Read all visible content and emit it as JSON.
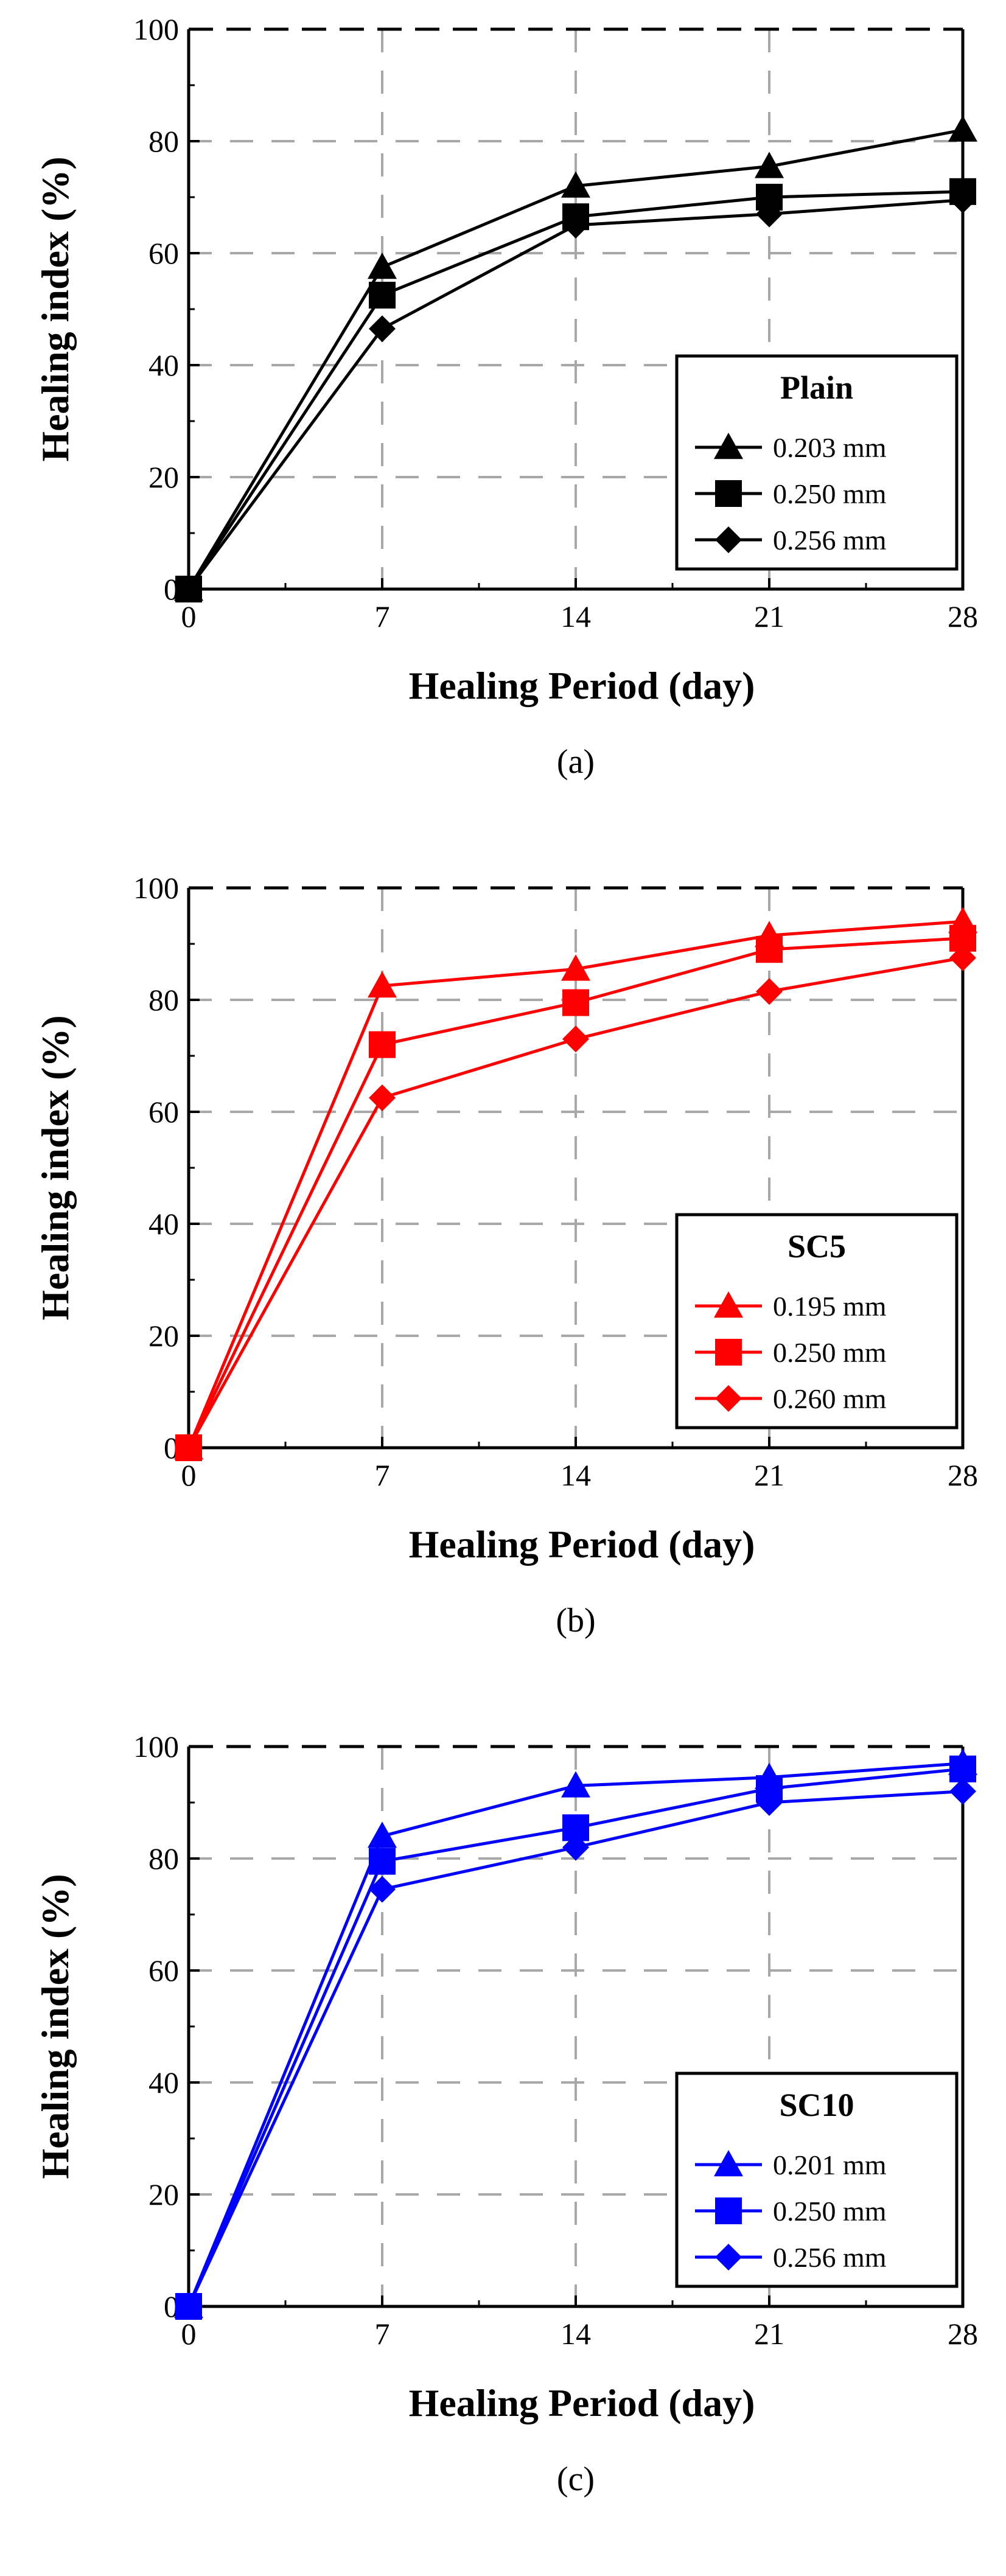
{
  "chart_data": [
    {
      "type": "line",
      "panel_caption": "(a)",
      "xlabel": "Healing Period (day)",
      "ylabel": "Healing index (%)",
      "x": [
        0,
        7,
        14,
        21,
        28
      ],
      "x_ticks": [
        "0",
        "7",
        "14",
        "21",
        "28"
      ],
      "y_ticks": [
        "0",
        "20",
        "40",
        "60",
        "80",
        "100"
      ],
      "xlim": [
        0,
        28
      ],
      "ylim": [
        0,
        100
      ],
      "grid": "dashed",
      "color": "#000000",
      "legend_position": "bottom-right",
      "legend_title": "Plain",
      "series": [
        {
          "name": "0.203 mm",
          "marker": "triangle",
          "values": [
            0,
            57.5,
            72,
            75.5,
            82
          ]
        },
        {
          "name": "0.250 mm",
          "marker": "square",
          "values": [
            0,
            52.5,
            66.5,
            70,
            71
          ]
        },
        {
          "name": "0.256 mm",
          "marker": "diamond",
          "values": [
            0,
            46.5,
            65,
            67,
            69.5
          ]
        }
      ]
    },
    {
      "type": "line",
      "panel_caption": "(b)",
      "xlabel": "Healing Period (day)",
      "ylabel": "Healing index (%)",
      "x": [
        0,
        7,
        14,
        21,
        28
      ],
      "x_ticks": [
        "0",
        "7",
        "14",
        "21",
        "28"
      ],
      "y_ticks": [
        "0",
        "20",
        "40",
        "60",
        "80",
        "100"
      ],
      "xlim": [
        0,
        28
      ],
      "ylim": [
        0,
        100
      ],
      "grid": "dashed",
      "color": "#ff0000",
      "legend_position": "bottom-right",
      "legend_title": "SC5",
      "series": [
        {
          "name": "0.195 mm",
          "marker": "triangle",
          "values": [
            0,
            82.5,
            85.5,
            91.5,
            94
          ]
        },
        {
          "name": "0.250 mm",
          "marker": "square",
          "values": [
            0,
            72,
            79.5,
            89,
            91
          ]
        },
        {
          "name": "0.260 mm",
          "marker": "diamond",
          "values": [
            0,
            62.5,
            73,
            81.5,
            87.5
          ]
        }
      ]
    },
    {
      "type": "line",
      "panel_caption": "(c)",
      "xlabel": "Healing Period (day)",
      "ylabel": "Healing index (%)",
      "x": [
        0,
        7,
        14,
        21,
        28
      ],
      "x_ticks": [
        "0",
        "7",
        "14",
        "21",
        "28"
      ],
      "y_ticks": [
        "0",
        "20",
        "40",
        "60",
        "80",
        "100"
      ],
      "xlim": [
        0,
        28
      ],
      "ylim": [
        0,
        100
      ],
      "grid": "dashed",
      "color": "#0000ff",
      "legend_position": "bottom-right",
      "legend_title": "SC10",
      "series": [
        {
          "name": "0.201 mm",
          "marker": "triangle",
          "values": [
            0,
            84,
            93,
            94.5,
            97
          ]
        },
        {
          "name": "0.250 mm",
          "marker": "square",
          "values": [
            0,
            79.5,
            85.5,
            92.5,
            96
          ]
        },
        {
          "name": "0.256 mm",
          "marker": "diamond",
          "values": [
            0,
            74.5,
            82,
            90,
            92
          ]
        }
      ]
    }
  ]
}
